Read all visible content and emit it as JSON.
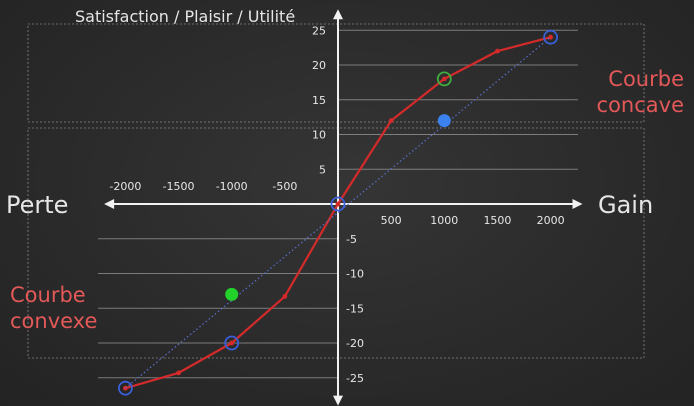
{
  "chart_data": {
    "type": "line",
    "title": "Satisfaction / Plaisir / Utilité",
    "xlabel_left": "Perte",
    "xlabel_right": "Gain",
    "x_ticks": [
      -2000,
      -1500,
      -1000,
      -500,
      500,
      1000,
      1500,
      2000
    ],
    "x_tick_labels": [
      "-2000",
      "-1500",
      "-1000",
      "-500",
      "500",
      "1000",
      "1500",
      "2000"
    ],
    "y_ticks": [
      25,
      20,
      15,
      10,
      5,
      -5,
      -10,
      -15,
      -20,
      -25
    ],
    "y_tick_labels": [
      "25",
      "20",
      "15",
      "10",
      "5",
      "-5",
      "-10",
      "-15",
      "-20",
      "-25"
    ],
    "xlim": [
      -2200,
      2300
    ],
    "ylim": [
      -27,
      26
    ],
    "grid": "horizontal",
    "series": [
      {
        "role": "utility-curve",
        "color": "#d42a2a",
        "x": [
          -2000,
          -1500,
          -1000,
          -500,
          0,
          500,
          1000,
          1500,
          2000
        ],
        "y": [
          -26.5,
          -24.3,
          -20,
          -13.3,
          0,
          12,
          18,
          22,
          24
        ]
      },
      {
        "role": "linear-reference",
        "color": "#5a6fd0",
        "style": "dotted",
        "x": [
          -2000,
          2000
        ],
        "y": [
          -26.5,
          24
        ]
      }
    ],
    "markers": [
      {
        "shape": "ring",
        "color": "#3a5fd8",
        "x": -2000,
        "y": -26.5
      },
      {
        "shape": "ring",
        "color": "#3a5fd8",
        "x": -1000,
        "y": -20
      },
      {
        "shape": "ring",
        "color": "#3a5fd8",
        "x": 0,
        "y": 0
      },
      {
        "shape": "ring",
        "color": "#3a5fd8",
        "x": 2000,
        "y": 24
      },
      {
        "shape": "ring",
        "color": "#3fae3f",
        "x": 1000,
        "y": 18
      },
      {
        "shape": "dot",
        "color": "#3b82f0",
        "x": 1000,
        "y": 12
      },
      {
        "shape": "dot",
        "color": "#22d12a",
        "x": -1000,
        "y": -13
      }
    ],
    "annotations": [
      {
        "text": [
          "Courbe",
          "concave"
        ],
        "color": "#e35858",
        "placement": "top-right"
      },
      {
        "text": [
          "Courbe",
          "convexe"
        ],
        "color": "#e35858",
        "placement": "bottom-left"
      }
    ]
  }
}
